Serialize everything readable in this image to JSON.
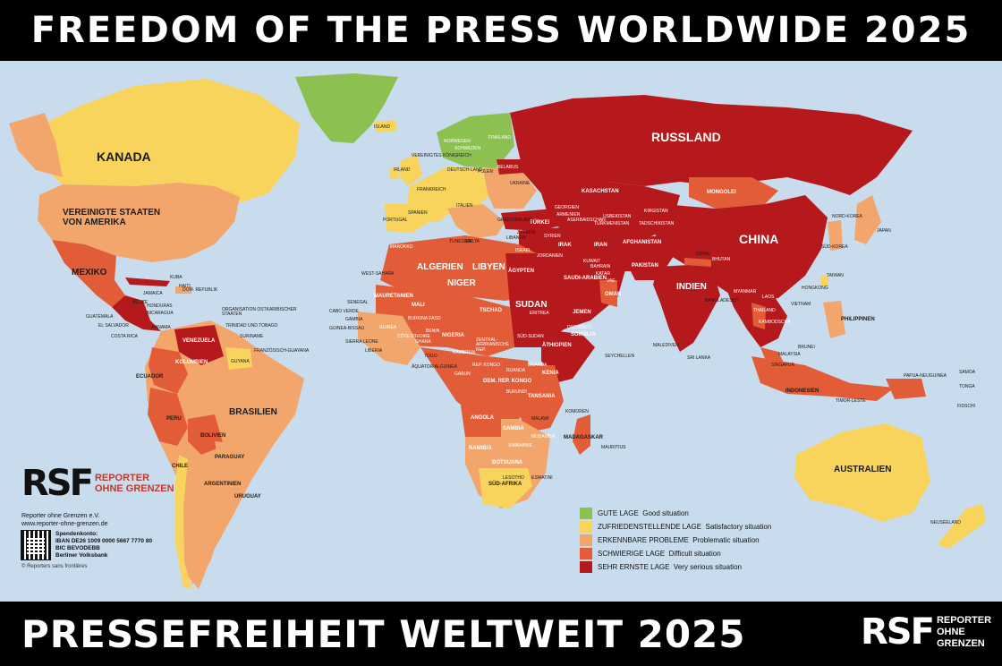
{
  "header": {
    "title": "FREEDOM OF THE PRESS WORLDWIDE 2025"
  },
  "footer": {
    "title": "PRESSEFREIHEIT WELTWEIT 2025",
    "logo_mark": "RSF",
    "logo_line1": "REPORTER",
    "logo_line2": "OHNE GRENZEN"
  },
  "colors": {
    "good": "#8cc152",
    "satisfactory": "#f8d45c",
    "problematic": "#f3a66c",
    "difficult": "#e25c37",
    "very_serious": "#b5191c",
    "sea": "#c8dced",
    "dark_difficult": "#c83a27"
  },
  "legend": [
    {
      "category": "good",
      "de": "GUTE LAGE",
      "en": "Good situation"
    },
    {
      "category": "satisfactory",
      "de": "ZUFRIEDENSTELLENDE LAGE",
      "en": "Satisfactory situation"
    },
    {
      "category": "problematic",
      "de": "ERKENNBARE PROBLEME",
      "en": "Problematic situation"
    },
    {
      "category": "difficult",
      "de": "SCHWIERIGE LAGE",
      "en": "Difficult situation"
    },
    {
      "category": "very_serious",
      "de": "SEHR ERNSTE LAGE",
      "en": "Very serious situation"
    }
  ],
  "rsf": {
    "logo_mark": "RSF",
    "logo_line1": "REPORTER",
    "logo_line2": "OHNE GRENZEN",
    "org": "Reporter ohne Grenzen e.V.",
    "url": "www.reporter-ohne-grenzen.de",
    "bank_title": "Spendenkonto:",
    "iban": "IBAN DE26 1009 0000 5667 7770 80",
    "bic": "BIC BEVODEBB",
    "bank": "Berliner Volksbank",
    "copyright": "© Reporters sans frontières"
  },
  "labels": {
    "kanada": "KANADA",
    "usa": "VEREINIGTE STAATEN VON AMERIKA",
    "mexiko": "MEXIKO",
    "russland": "RUSSLAND",
    "china": "CHINA",
    "indien": "INDIEN",
    "brasilien": "BRASILIEN",
    "australien": "AUSTRALIEN",
    "mongolei": "MONGOLEI",
    "kasachstan": "KASACHSTAN",
    "algerien": "ALGERIEN",
    "libyen": "LIBYEN",
    "aegypten": "ÄGYPTEN",
    "sudan": "SUDAN",
    "niger": "NIGER",
    "tschad": "TSCHAD",
    "mali": "MALI",
    "mauretanien": "MAURETANIEN",
    "nigeria": "NIGERIA",
    "aethiopien": "ÄTHIOPIEN",
    "somalia": "SOMALIA",
    "kenia": "KENIA",
    "tansania": "TANSANIA",
    "angola": "ANGOLA",
    "namibia": "NAMIBIA",
    "botsuana": "BOTSUANA",
    "sambia": "SAMBIA",
    "madagaskar": "MADAGASKAR",
    "suedafrika": "SÜD-AFRIKA",
    "dem_rep_kongo": "DEM. REP. KONGO",
    "saudi": "SAUDI-ARABIEN",
    "iran": "IRAN",
    "irak": "IRAK",
    "tuerkei": "TÜRKEI",
    "pakistan": "PAKISTAN",
    "afghanistan": "AFGHANISTAN",
    "jemen": "JEMEN",
    "oman": "OMAN",
    "venezuela": "VENEZUELA",
    "kolumbien": "KOLUMBIEN",
    "peru": "PERU",
    "bolivien": "BOLIVIEN",
    "paraguay": "PARAGUAY",
    "argentinien": "ARGENTINIEN",
    "chile": "CHILE",
    "uruguay": "URUGUAY",
    "ecuador": "ECUADOR",
    "indonesien": "INDONESIEN",
    "philippinen": "PHILIPPINEN",
    "papua": "PAPUA-NEUGUINEA",
    "neuseeland": "NEUSEELAND",
    "japan": "JAPAN",
    "island": "ISLAND",
    "norwegen": "NORWEGEN",
    "schweden": "SCHWEDEN",
    "finnland": "FINNLAND",
    "spanien": "SPANIEN",
    "frankreich": "FRANKREICH",
    "deutschland": "DEUTSCH-LAND",
    "polen": "POLEN",
    "ukraine": "UKRAINE",
    "uk": "VEREINIGTES KÖNIGREICH",
    "irland": "IRLAND",
    "marokko": "MAROKKO",
    "west_sahara": "WEST-SAHARA",
    "myanmar": "MYANMAR",
    "thailand": "THAILAND",
    "kambodscha": "KAMBODSCHA",
    "vietnam": "VIETNAM",
    "malaysia": "MALAYSIA",
    "nepal": "NEPAL",
    "bhutan": "BHUTAN",
    "bangladesch": "BANGLADESCH",
    "sri_lanka": "SRI LANKA",
    "malediven": "MALEDIVEN",
    "taiwan": "TAIWAN",
    "nordkorea": "NORD-KOREA",
    "suedkorea": "SÜD-KOREA",
    "hongkong": "HONGKONG",
    "kuba": "KUBA",
    "haiti": "HAITI",
    "dom_rep": "DOM. REPUBLIK",
    "jamaica": "JAMAICA",
    "belize": "BELIZE",
    "honduras": "HONDURAS",
    "nicaragua": "NICARAGUA",
    "guatemala": "GUATEMALA",
    "el_salvador": "EL SALVADOR",
    "costa_rica": "COSTA RICA",
    "panama": "PANAMA",
    "oecs": "ORGANISATION OSTKARIBISCHER STAATEN",
    "trinidad": "TRINIDAD UND TOBAGO",
    "guyana": "GUYANA",
    "suriname": "SURINAME",
    "fr_guayana": "FRANZÖSISCH-GUAYANA",
    "senegal": "SENEGAL",
    "gambia": "GAMBIA",
    "guinea_bissau": "GUINEA-BISSAU",
    "guinea": "GUINEA",
    "sierra_leone": "SIERRA LEONE",
    "liberia": "LIBERIA",
    "cabo_verde": "CABO VERDE",
    "burkina": "BURKINA FASO",
    "cote": "CÔTE D'IVOIRE",
    "ghana": "GHANA",
    "togo": "TOGO",
    "benin": "BENIN",
    "kamerun": "KAMERUN",
    "zar": "ZENTRAL-AFRIKANISCHE REP.",
    "gabun": "GABUN",
    "rep_kongo": "REP. KONGO",
    "aequatorial": "ÄQUATORIALGUINEA",
    "suedsudan": "SÜD-SUDAN",
    "eritrea": "ERITREA",
    "dschibuti": "DSCHIBUTI",
    "uganda": "UGANDA",
    "ruanda": "RUANDA",
    "burundi": "BURUNDI",
    "malawi": "MALAWI",
    "mosambik": "MOSAMBIK",
    "simbabwe": "SIMBABWE",
    "lesotho": "LESOTHO",
    "eswatini": "ESWATINI",
    "komoren": "KOMOREN",
    "mauritius": "MAURITIUS",
    "seychellen": "SEYCHELLEN",
    "syrien": "SYRIEN",
    "libanon": "LIBANON",
    "israel": "ISRAEL",
    "jordanien": "JORDANIEN",
    "kuwait": "KUWAIT",
    "katar": "KATAR",
    "vae": "VAE",
    "bahrain": "BAHRAIN",
    "usbekistan": "USBEKISTAN",
    "turkmenistan": "TURKMENISTAN",
    "kirgistan": "KIRGISTAN",
    "tadschikistan": "TADSCHIKISTAN",
    "georgien": "GEORGIEN",
    "armenien": "ARMENIEN",
    "aserbaidschan": "ASERBAIDSCHAN",
    "belarus": "BELARUS",
    "griechenland": "GRIECHENLAND",
    "italien": "ITALIEN",
    "portugal": "PORTUGAL",
    "tunesien": "TUNESIEN",
    "malta": "MALTA",
    "zypern": "ZYPERN",
    "timor": "TIMOR-LESTE",
    "brunei": "BRUNEI",
    "singapur": "SINGAPUR",
    "laos": "LAOS",
    "samoa": "SAMOA",
    "tonga": "TONGA",
    "fidschi": "FIDSCHI"
  }
}
